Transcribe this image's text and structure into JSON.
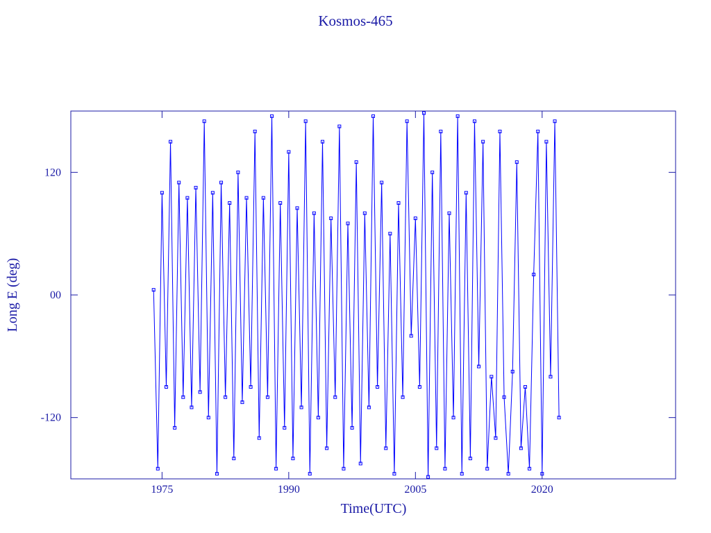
{
  "chart_data": {
    "type": "line",
    "title": "Kosmos-465",
    "x_label": "Time(UTC)",
    "y_label": "Long E (deg)",
    "xlim": [
      1964.2,
      2035.8
    ],
    "xticks": [
      1975,
      1990,
      2005,
      2020
    ],
    "ylim": [
      -180,
      180
    ],
    "yticks": [
      120,
      {
        "value": 0,
        "label": "00"
      },
      -120
    ],
    "series": [
      {
        "name": "Kosmos-465",
        "color": "#0000ff",
        "x": [
          1974,
          1974.5,
          1975,
          1975.5,
          1976,
          1976.5,
          1977,
          1977.5,
          1978,
          1978.5,
          1979,
          1979.5,
          1980,
          1980.5,
          1981,
          1981.5,
          1982,
          1982.5,
          1983,
          1983.5,
          1984,
          1984.5,
          1985,
          1985.5,
          1986,
          1986.5,
          1987,
          1987.5,
          1988,
          1988.5,
          1989,
          1989.5,
          1990,
          1990.5,
          1991,
          1991.5,
          1992,
          1992.5,
          1993,
          1993.5,
          1994,
          1994.5,
          1995,
          1995.5,
          1996,
          1996.5,
          1997,
          1997.5,
          1998,
          1998.5,
          1999,
          1999.5,
          2000,
          2000.5,
          2001,
          2001.5,
          2002,
          2002.5,
          2003,
          2003.5,
          2004,
          2004.5,
          2005,
          2005.5,
          2006,
          2006.5,
          2007,
          2007.5,
          2008,
          2008.5,
          2009,
          2009.5,
          2010,
          2010.5,
          2011,
          2011.5,
          2012,
          2012.5,
          2013,
          2013.5,
          2014,
          2014.5,
          2015,
          2015.5,
          2016,
          2016.5,
          2017,
          2017.5,
          2018,
          2018.5,
          2019,
          2019.5,
          2020,
          2020.5,
          2021,
          2021.5,
          2022
        ],
        "values": [
          5,
          -170,
          100,
          -90,
          150,
          -130,
          110,
          -100,
          95,
          -110,
          105,
          -95,
          170,
          -120,
          100,
          -175,
          110,
          -100,
          90,
          -160,
          120,
          -105,
          95,
          -90,
          160,
          -140,
          95,
          -100,
          175,
          -170,
          90,
          -130,
          140,
          -160,
          85,
          -110,
          170,
          -175,
          80,
          -120,
          150,
          -150,
          75,
          -100,
          165,
          -170,
          70,
          -130,
          130,
          -165,
          80,
          -110,
          175,
          -90,
          110,
          -150,
          60,
          -175,
          90,
          -100,
          170,
          -40,
          75,
          -90,
          178,
          -178,
          120,
          -150,
          160,
          -170,
          80,
          -120,
          175,
          -175,
          100,
          -160,
          170,
          -70,
          150,
          -170,
          -80,
          -140,
          160,
          -100,
          -175,
          -75,
          130,
          -150,
          -90,
          -170,
          20,
          160,
          -175,
          150,
          -80,
          170,
          -120
        ]
      }
    ]
  }
}
